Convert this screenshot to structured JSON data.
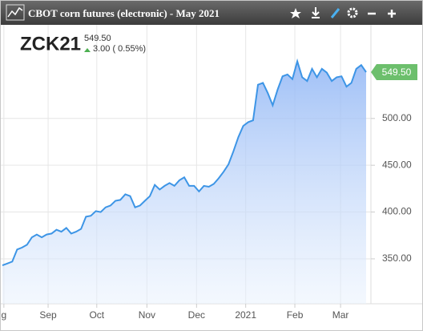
{
  "chart_data": {
    "type": "line",
    "title": "CBOT corn futures (electronic) - May 2021",
    "symbol": "ZCK21",
    "price": "549.50",
    "change": "3.00 ( 0.55%)",
    "color": "#3d95e6",
    "values": [
      343,
      345,
      347,
      360,
      362,
      365,
      373,
      376,
      373,
      376,
      377,
      381,
      379,
      383,
      377,
      379,
      382,
      395,
      396,
      401,
      400,
      405,
      407,
      412,
      413,
      419,
      417,
      405,
      407,
      412,
      417,
      429,
      424,
      428,
      431,
      428,
      434,
      437,
      428,
      428,
      422,
      428,
      427,
      430,
      436,
      443,
      451,
      465,
      480,
      492,
      496,
      498,
      536,
      538,
      527,
      514,
      531,
      545,
      547,
      542,
      561,
      544,
      540,
      553,
      544,
      553,
      549,
      540,
      544,
      545,
      534,
      538,
      553,
      557,
      549.5
    ],
    "ylim": [
      302,
      600
    ],
    "yticks": [
      {
        "value": 350,
        "label": "350.00"
      },
      {
        "value": 400,
        "label": "400.00"
      },
      {
        "value": 450,
        "label": "450.00"
      },
      {
        "value": 500,
        "label": "500.00"
      }
    ],
    "xticks": [
      {
        "value": 0.3,
        "label": "g"
      },
      {
        "value": 9.3,
        "label": "Sep"
      },
      {
        "value": 19.2,
        "label": "Oct"
      },
      {
        "value": 29.4,
        "label": "Nov"
      },
      {
        "value": 39.5,
        "label": "Dec"
      },
      {
        "value": 49.5,
        "label": "2021"
      },
      {
        "value": 59.5,
        "label": "Feb"
      },
      {
        "value": 68.8,
        "label": "Mar"
      }
    ],
    "grid": true
  }
}
